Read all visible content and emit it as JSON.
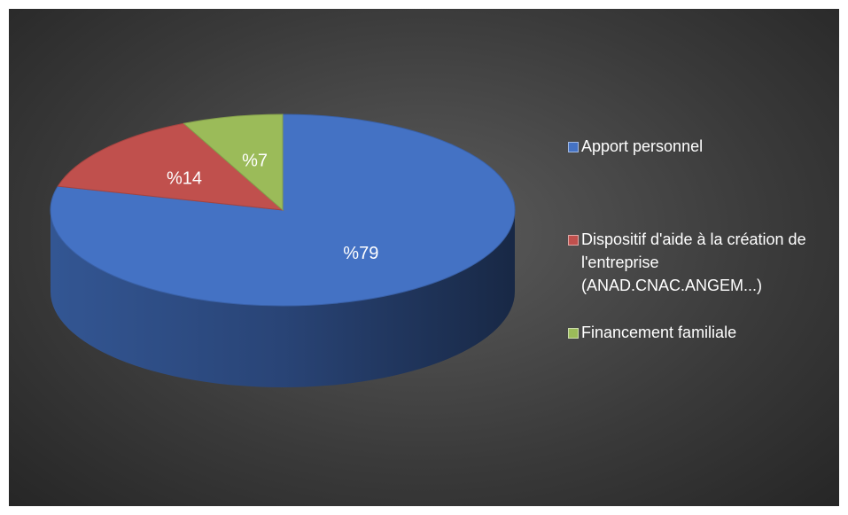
{
  "chart_data": {
    "type": "pie",
    "categories": [
      "Apport personnel",
      "Dispositif d'aide à la création de l'entreprise (ANAD.CNAC.ANGEM...)",
      "Financement familiale"
    ],
    "values": [
      79,
      14,
      7
    ],
    "value_labels": [
      "%79",
      "%14",
      "%7"
    ],
    "colors": [
      "#4472c4",
      "#c0504d",
      "#9bbb59"
    ],
    "legend": "right"
  }
}
